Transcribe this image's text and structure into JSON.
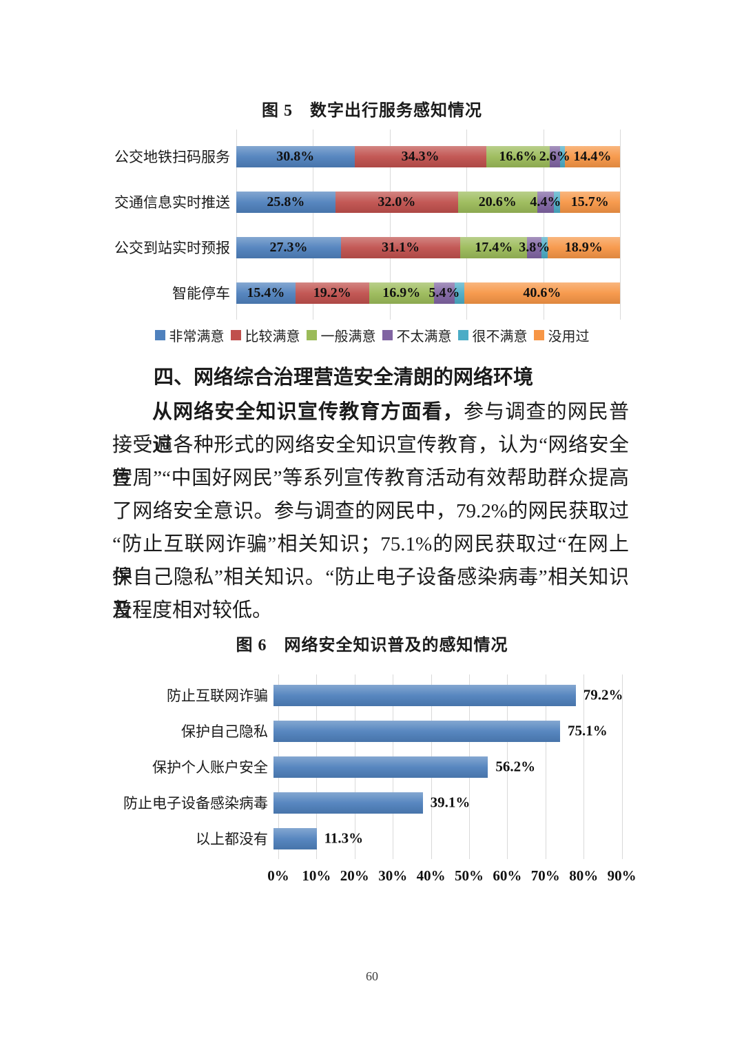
{
  "page": {
    "number": "60",
    "background": "#ffffff"
  },
  "section": {
    "heading": "四、网络综合治理营造安全清朗的网络环境",
    "lead_bold": "从网络安全知识宣传教育方面看，",
    "lead_rest": "参与调查的网民普遍",
    "lines": [
      "接受过各种形式的网络安全知识宣传教育，认为“网络安全宣",
      "传周”“中国好网民”等系列宣传教育活动有效帮助群众提高",
      "了网络安全意识。参与调查的网民中，79.2%的网民获取过",
      "“防止互联网诈骗”相关知识；75.1%的网民获取过“在网上保",
      "护自己隐私”相关知识。“防止电子设备感染病毒”相关知识普",
      "及程度相对较低。"
    ]
  },
  "colors": {
    "very_satisfied": "#4F81BD",
    "satisfied": "#C0504D",
    "neutral": "#9BBB59",
    "unsatisfied": "#8064A2",
    "very_unsatisfied": "#4BACC6",
    "never_used": "#F79646",
    "gridline": "#d9d9d9"
  },
  "chart_data": [
    {
      "type": "bar",
      "stacked": true,
      "orientation": "horizontal",
      "title": "图 5　数字出行服务感知情况",
      "categories": [
        "公交地铁扫码服务",
        "交通信息实时推送",
        "公交到站实时预报",
        "智能停车"
      ],
      "series": [
        {
          "name": "非常满意",
          "color": "#4F81BD",
          "values": [
            30.8,
            25.8,
            27.3,
            15.4
          ],
          "labels": [
            "30.8%",
            "25.8%",
            "27.3%",
            "15.4%"
          ]
        },
        {
          "name": "比较满意",
          "color": "#C0504D",
          "values": [
            34.3,
            32.0,
            31.1,
            19.2
          ],
          "labels": [
            "34.3%",
            "32.0%",
            "31.1%",
            "19.2%"
          ]
        },
        {
          "name": "一般满意",
          "color": "#9BBB59",
          "values": [
            16.6,
            20.6,
            17.4,
            16.9
          ],
          "labels": [
            "16.6%",
            "20.6%",
            "17.4%",
            "16.9%"
          ]
        },
        {
          "name": "不太满意",
          "color": "#8064A2",
          "values": [
            2.6,
            4.4,
            3.8,
            5.4
          ],
          "labels": [
            "2.6%",
            "4.4%",
            "3.8%",
            "5.4%"
          ]
        },
        {
          "name": "很不满意",
          "color": "#4BACC6",
          "values": [
            1.3,
            1.5,
            1.5,
            2.5
          ],
          "labels": [
            "",
            "",
            "",
            ""
          ]
        },
        {
          "name": "没用过",
          "color": "#F79646",
          "values": [
            14.4,
            15.7,
            18.9,
            40.6
          ],
          "labels": [
            "14.4%",
            "15.7%",
            "18.9%",
            "40.6%"
          ]
        }
      ],
      "xlim": [
        0,
        100
      ],
      "gridline_step": 20,
      "legend_position": "bottom",
      "legend": [
        "非常满意",
        "比较满意",
        "一般满意",
        "不太满意",
        "很不满意",
        "没用过"
      ]
    },
    {
      "type": "bar",
      "stacked": false,
      "orientation": "horizontal",
      "title": "图 6　网络安全知识普及的感知情况",
      "categories": [
        "防止互联网诈骗",
        "保护自己隐私",
        "保护个人账户安全",
        "防止电子设备感染病毒",
        "以上都没有"
      ],
      "values": [
        79.2,
        75.1,
        56.2,
        39.1,
        11.3
      ],
      "labels": [
        "79.2%",
        "75.1%",
        "56.2%",
        "39.1%",
        "11.3%"
      ],
      "color": "#4F81BD",
      "x_ticks": [
        "0%",
        "10%",
        "20%",
        "30%",
        "40%",
        "50%",
        "60%",
        "70%",
        "80%",
        "90%"
      ],
      "xlim": [
        0,
        100
      ],
      "gridline_step": 10,
      "legend_position": "none"
    }
  ]
}
